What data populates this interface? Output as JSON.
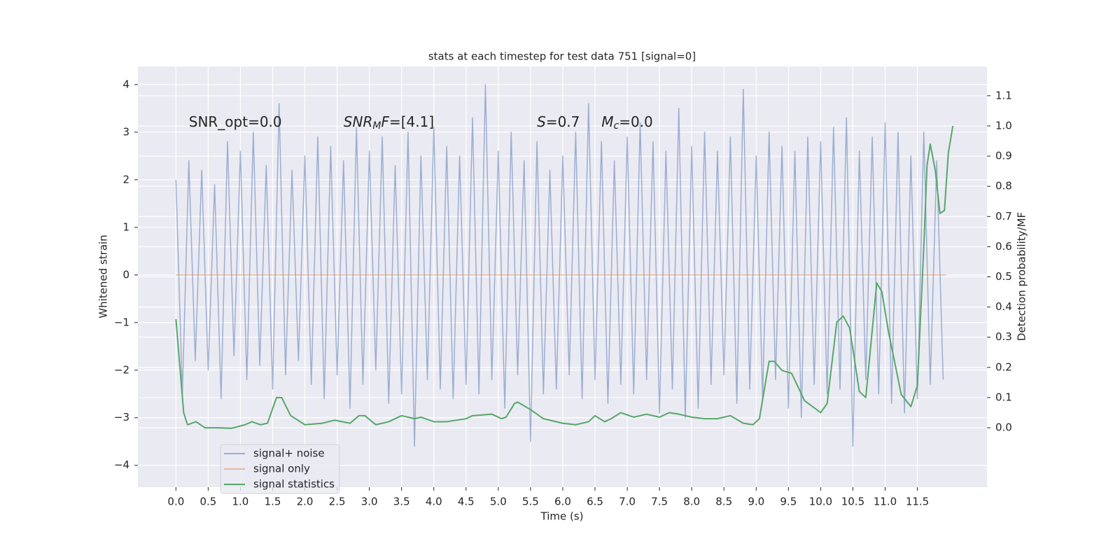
{
  "chart_data": {
    "type": "line",
    "title": "stats at each timestep for test data 751 [signal=0]",
    "xlabel": "Time (s)",
    "ylabel": "Whitened strain",
    "y2label": "Detection probability/MF",
    "xlim": [
      -0.59,
      12.58
    ],
    "ylim": [
      -4.46,
      4.38
    ],
    "y2lim": [
      -0.197,
      1.197
    ],
    "xticks": [
      {
        "value": 0,
        "label": "0.0"
      },
      0.5,
      {
        "value": 1,
        "label": "1.0"
      },
      1.5,
      {
        "value": 2,
        "label": "2.0"
      },
      2.5,
      {
        "value": 3,
        "label": "3.0"
      },
      3.5,
      {
        "value": 4,
        "label": "4.0"
      },
      4.5,
      {
        "value": 5,
        "label": "5.0"
      },
      5.5,
      {
        "value": 6,
        "label": "6.0"
      },
      6.5,
      {
        "value": 7,
        "label": "7.0"
      },
      7.5,
      {
        "value": 8,
        "label": "8.0"
      },
      8.5,
      {
        "value": 9,
        "label": "9.0"
      },
      9.5,
      {
        "value": 10,
        "label": "10.0"
      },
      10.5,
      {
        "value": 11,
        "label": "11.0"
      },
      11.5
    ],
    "yticks": [
      {
        "value": -4,
        "label": "−4"
      },
      {
        "value": -3,
        "label": "−3"
      },
      {
        "value": -2,
        "label": "−2"
      },
      {
        "value": -1,
        "label": "−1"
      },
      0,
      1,
      2,
      3,
      4
    ],
    "y2ticks": [
      {
        "value": 0,
        "label": "0.0"
      },
      0.1,
      0.2,
      0.3,
      0.4,
      0.5,
      0.6,
      0.7,
      0.8,
      0.9,
      {
        "value": 1,
        "label": "1.0"
      },
      1.1
    ],
    "grid": true,
    "legend": "lower left",
    "annotations": [
      {
        "x": 0.2,
        "y": 3.2,
        "parts": [
          {
            "text": "SNR_opt=0.0",
            "style": "normal"
          }
        ]
      },
      {
        "x": 2.6,
        "y": 3.2,
        "parts": [
          {
            "text": "SNR",
            "style": "italic"
          },
          {
            "text": "M",
            "style": "sub"
          },
          {
            "text": "F",
            "style": "italic"
          },
          {
            "text": "=[4.1]",
            "style": "normal"
          }
        ]
      },
      {
        "x": 5.6,
        "y": 3.2,
        "parts": [
          {
            "text": "S",
            "style": "italic"
          },
          {
            "text": "=0.7",
            "style": "normal"
          }
        ]
      },
      {
        "x": 6.6,
        "y": 3.2,
        "parts": [
          {
            "text": "M",
            "style": "italic"
          },
          {
            "text": "c",
            "style": "sub"
          },
          {
            "text": "=0.0",
            "style": "normal"
          }
        ]
      }
    ],
    "series": [
      {
        "name": "signal+ noise",
        "color": "#4c72b0",
        "opacity": 0.5,
        "x": [
          0,
          0.1,
          0.2,
          0.3,
          0.4,
          0.5,
          0.6,
          0.7,
          0.8,
          0.9,
          1,
          1.1,
          1.2,
          1.3,
          1.4,
          1.5,
          1.6,
          1.7,
          1.8,
          1.9,
          2,
          2.1,
          2.2,
          2.3,
          2.4,
          2.5,
          2.6,
          2.7,
          2.8,
          2.9,
          3,
          3.1,
          3.2,
          3.3,
          3.4,
          3.5,
          3.6,
          3.7,
          3.8,
          3.9,
          4,
          4.1,
          4.2,
          4.3,
          4.4,
          4.5,
          4.6,
          4.7,
          4.8,
          4.9,
          5,
          5.1,
          5.2,
          5.3,
          5.4,
          5.5,
          5.6,
          5.7,
          5.8,
          5.9,
          6,
          6.1,
          6.2,
          6.3,
          6.4,
          6.5,
          6.6,
          6.7,
          6.8,
          6.9,
          7,
          7.1,
          7.2,
          7.3,
          7.4,
          7.5,
          7.6,
          7.7,
          7.8,
          7.9,
          8,
          8.1,
          8.2,
          8.3,
          8.4,
          8.5,
          8.6,
          8.7,
          8.8,
          8.9,
          9,
          9.1,
          9.2,
          9.3,
          9.4,
          9.5,
          9.6,
          9.7,
          9.8,
          9.9,
          10,
          10.1,
          10.2,
          10.3,
          10.4,
          10.5,
          10.6,
          10.7,
          10.8,
          10.9,
          11,
          11.1,
          11.2,
          11.3,
          11.4,
          11.5,
          11.6,
          11.7,
          11.8,
          11.9
        ],
        "values": [
          2.0,
          -2.5,
          2.4,
          -1.8,
          2.2,
          -2.0,
          1.9,
          -2.6,
          2.8,
          -1.7,
          2.6,
          -2.2,
          3.0,
          -1.9,
          2.3,
          -2.4,
          3.6,
          -2.1,
          2.2,
          -1.8,
          2.5,
          -2.3,
          2.9,
          -2.6,
          2.7,
          -2.1,
          2.4,
          -2.8,
          3.1,
          -2.3,
          2.6,
          -2.0,
          2.9,
          -2.7,
          2.3,
          -2.5,
          3.0,
          -3.6,
          2.5,
          -2.2,
          3.1,
          -2.4,
          2.7,
          -2.6,
          2.5,
          -2.3,
          3.3,
          -2.5,
          4.0,
          -2.2,
          2.6,
          -2.8,
          3.0,
          -2.1,
          2.4,
          -3.5,
          2.8,
          -2.5,
          2.2,
          -2.4,
          2.5,
          -2.1,
          3.0,
          -2.6,
          3.6,
          -2.2,
          2.8,
          -2.7,
          2.4,
          -2.3,
          2.9,
          -2.5,
          3.2,
          -2.2,
          2.8,
          -2.9,
          2.6,
          -2.4,
          3.5,
          -3.0,
          2.7,
          -2.8,
          3.0,
          -2.3,
          2.6,
          -2.1,
          2.9,
          -2.7,
          3.9,
          -2.4,
          2.5,
          -2.6,
          3.0,
          -2.2,
          2.7,
          -2.8,
          2.6,
          -3.0,
          2.9,
          -2.3,
          2.8,
          -2.5,
          3.1,
          -2.4,
          3.3,
          -3.6,
          2.6,
          -2.2,
          2.9,
          -2.5,
          3.2,
          -2.7,
          3.0,
          -2.9,
          2.5,
          -2.6,
          3.0,
          -2.3,
          2.4,
          -2.2
        ]
      },
      {
        "name": "signal only",
        "color": "#dd8452",
        "opacity": 0.5,
        "x": [
          0,
          11.95
        ],
        "values": [
          0,
          0
        ]
      },
      {
        "name": "signal statistics",
        "color": "#55a868",
        "opacity": 1,
        "axis": "y2",
        "x": [
          0,
          0.12,
          0.18,
          0.31,
          0.45,
          0.64,
          0.86,
          1.07,
          1.18,
          1.31,
          1.42,
          1.56,
          1.64,
          1.78,
          2.0,
          2.27,
          2.46,
          2.7,
          2.84,
          2.93,
          3.1,
          3.3,
          3.5,
          3.7,
          3.8,
          4.0,
          4.2,
          4.5,
          4.6,
          4.9,
          5.05,
          5.12,
          5.25,
          5.3,
          5.5,
          5.7,
          6.0,
          6.2,
          6.4,
          6.5,
          6.65,
          6.75,
          6.9,
          7.1,
          7.3,
          7.5,
          7.65,
          7.8,
          8.0,
          8.2,
          8.4,
          8.6,
          8.8,
          8.95,
          9.05,
          9.2,
          9.28,
          9.4,
          9.55,
          9.75,
          10.0,
          10.1,
          10.25,
          10.35,
          10.45,
          10.6,
          10.7,
          10.87,
          10.95,
          11.05,
          11.25,
          11.4,
          11.5,
          11.6,
          11.65,
          11.7,
          11.78,
          11.85,
          11.92,
          11.98,
          12.05
        ],
        "values": [
          0.36,
          0.05,
          0.01,
          0.02,
          0.0,
          0.0,
          -0.002,
          0.01,
          0.02,
          0.01,
          0.015,
          0.1,
          0.1,
          0.04,
          0.01,
          0.015,
          0.025,
          0.015,
          0.04,
          0.04,
          0.01,
          0.02,
          0.04,
          0.03,
          0.035,
          0.02,
          0.02,
          0.03,
          0.04,
          0.045,
          0.03,
          0.035,
          0.08,
          0.085,
          0.06,
          0.03,
          0.015,
          0.01,
          0.02,
          0.04,
          0.02,
          0.03,
          0.05,
          0.035,
          0.045,
          0.035,
          0.05,
          0.045,
          0.035,
          0.03,
          0.03,
          0.04,
          0.015,
          0.01,
          0.03,
          0.22,
          0.22,
          0.19,
          0.18,
          0.09,
          0.05,
          0.08,
          0.35,
          0.37,
          0.33,
          0.12,
          0.1,
          0.48,
          0.45,
          0.32,
          0.11,
          0.07,
          0.14,
          0.6,
          0.87,
          0.94,
          0.85,
          0.71,
          0.72,
          0.91,
          1.0
        ]
      }
    ]
  }
}
